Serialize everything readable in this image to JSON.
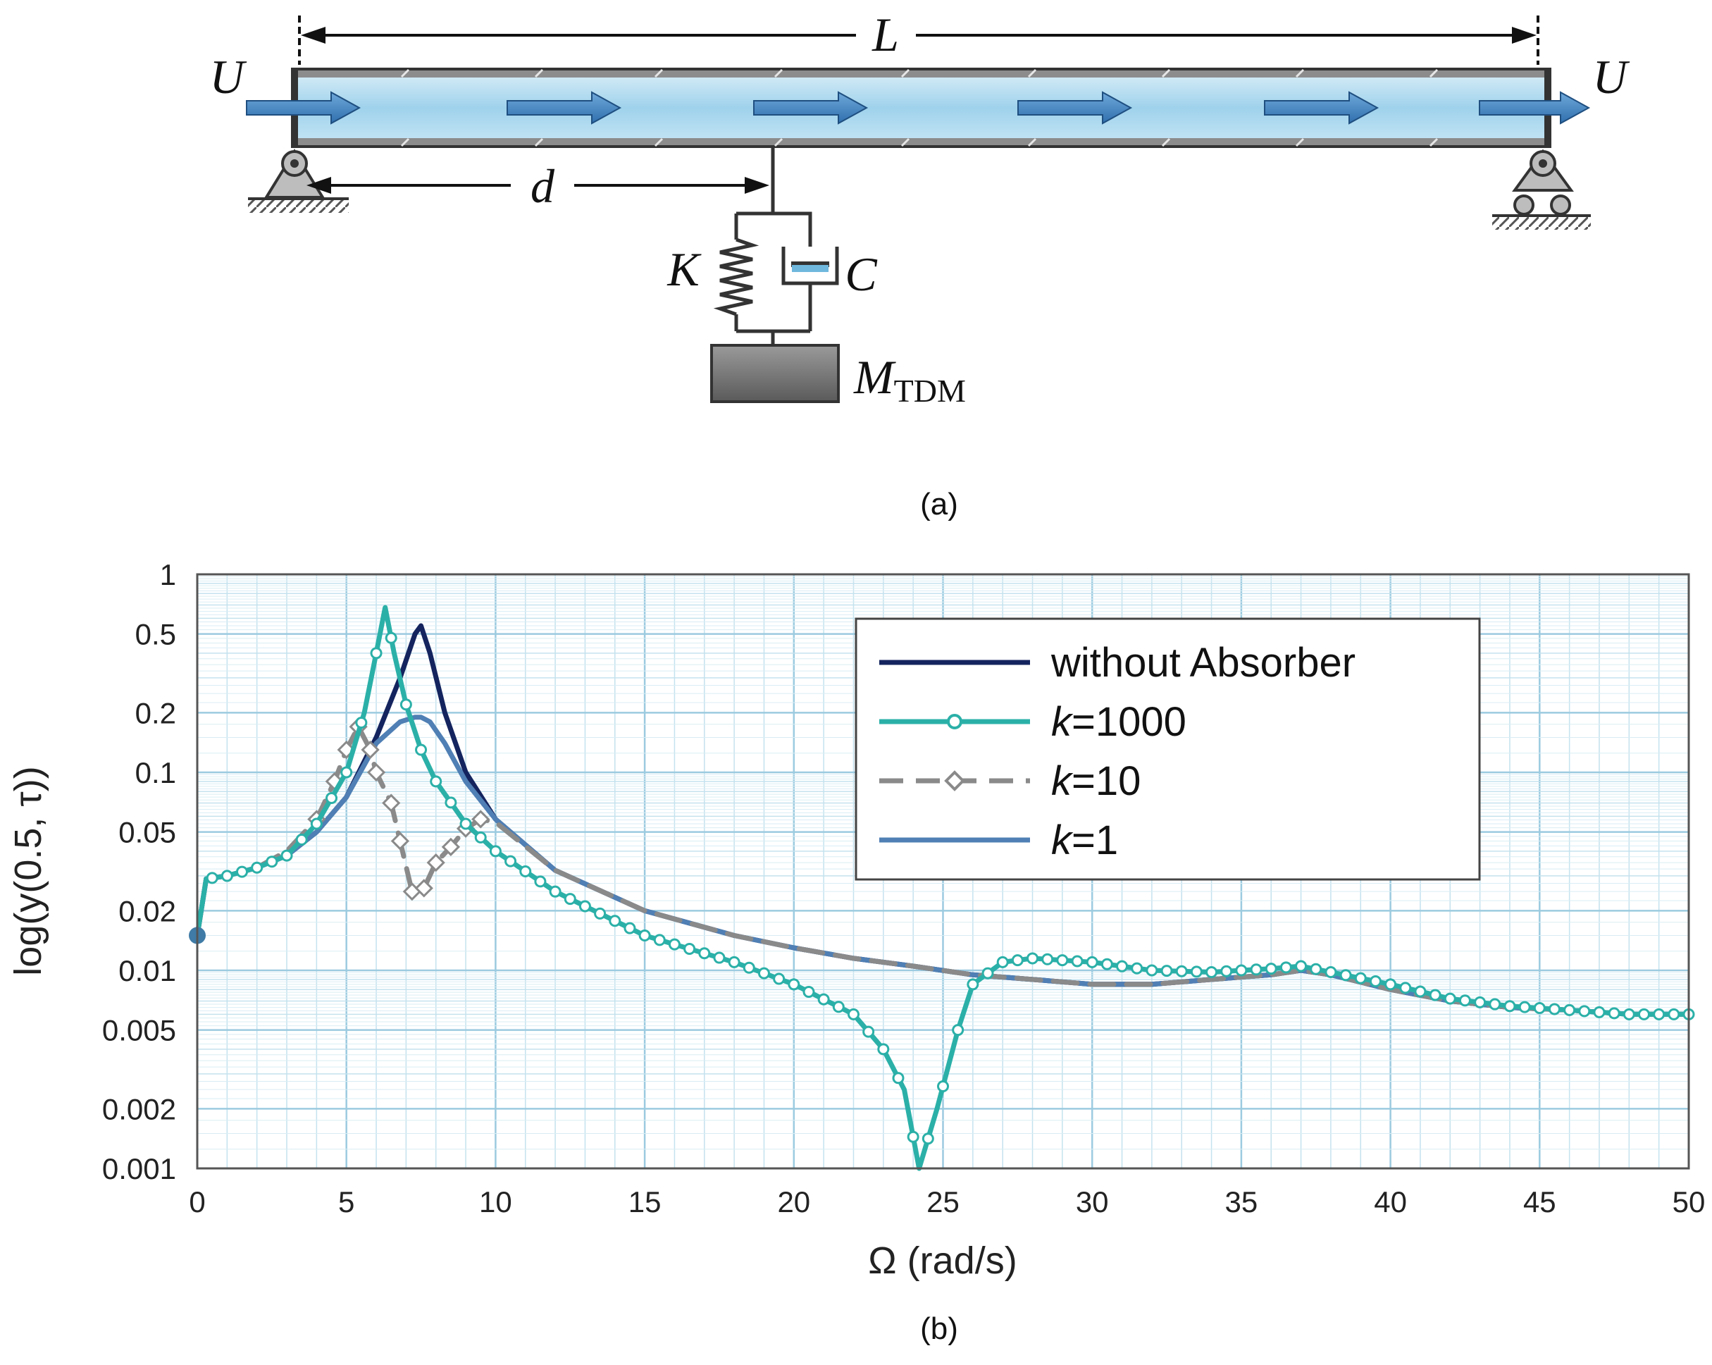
{
  "diagram": {
    "caption": "(a)",
    "length_label": "L",
    "distance_label": "d",
    "flow_label_left": "U",
    "flow_label_right": "U",
    "spring_label": "K",
    "damper_label": "C",
    "mass_label": "M",
    "mass_subscript": "TDM"
  },
  "chart_data": {
    "type": "line",
    "caption": "(b)",
    "xlabel": "Ω (rad/s)",
    "ylabel": "log(y(0.5, τ))",
    "xlim": [
      0,
      50
    ],
    "ylim": [
      0.001,
      1
    ],
    "yscale": "log",
    "grid": true,
    "legend_position": "upper-right",
    "x_ticks": [
      0,
      5,
      10,
      15,
      20,
      25,
      30,
      35,
      40,
      45,
      50
    ],
    "x_tick_labels": [
      "0",
      "5",
      "10",
      "15",
      "20",
      "25",
      "30",
      "35",
      "40",
      "45",
      "50"
    ],
    "y_ticks": [
      0.001,
      0.002,
      0.005,
      0.01,
      0.02,
      0.05,
      0.1,
      0.2,
      0.5,
      1
    ],
    "y_tick_labels": [
      "0.001",
      "0.002",
      "0.005",
      "0.01",
      "0.02",
      "0.05",
      "0.1",
      "0.2",
      "0.5",
      "1"
    ],
    "series": [
      {
        "name": "without Absorber",
        "name_prefix": "",
        "name_suffix": "without Absorber",
        "color": "#14245e",
        "style": "solid",
        "marker": "none",
        "points": [
          [
            0,
            0.015
          ],
          [
            0.3,
            0.029
          ],
          [
            1,
            0.03
          ],
          [
            2,
            0.033
          ],
          [
            3,
            0.038
          ],
          [
            4,
            0.05
          ],
          [
            5,
            0.075
          ],
          [
            6,
            0.15
          ],
          [
            6.8,
            0.3
          ],
          [
            7.3,
            0.5
          ],
          [
            7.5,
            0.55
          ],
          [
            7.8,
            0.4
          ],
          [
            8.3,
            0.2
          ],
          [
            9,
            0.1
          ],
          [
            10,
            0.058
          ],
          [
            12,
            0.032
          ],
          [
            15,
            0.02
          ],
          [
            18,
            0.015
          ],
          [
            20,
            0.013
          ],
          [
            22,
            0.0115
          ],
          [
            24,
            0.0105
          ],
          [
            26,
            0.0095
          ],
          [
            28,
            0.009
          ],
          [
            30,
            0.0085
          ],
          [
            32,
            0.0085
          ],
          [
            34,
            0.009
          ],
          [
            36,
            0.0095
          ],
          [
            37,
            0.01
          ],
          [
            38,
            0.0095
          ],
          [
            40,
            0.008
          ],
          [
            42,
            0.007
          ],
          [
            44,
            0.0065
          ],
          [
            46,
            0.0063
          ],
          [
            48,
            0.006
          ],
          [
            50,
            0.006
          ]
        ]
      },
      {
        "name": "k=1000",
        "name_prefix": "k",
        "name_suffix": "=1000",
        "color": "#2bb0a8",
        "style": "solid",
        "marker": "circle",
        "points": [
          [
            0,
            0.015
          ],
          [
            0.3,
            0.029
          ],
          [
            1,
            0.03
          ],
          [
            2,
            0.033
          ],
          [
            3,
            0.038
          ],
          [
            4,
            0.055
          ],
          [
            5,
            0.1
          ],
          [
            5.6,
            0.2
          ],
          [
            6,
            0.4
          ],
          [
            6.3,
            0.68
          ],
          [
            6.6,
            0.4
          ],
          [
            7,
            0.22
          ],
          [
            7.5,
            0.13
          ],
          [
            8,
            0.09
          ],
          [
            9,
            0.055
          ],
          [
            10,
            0.04
          ],
          [
            12,
            0.025
          ],
          [
            15,
            0.015
          ],
          [
            18,
            0.011
          ],
          [
            20,
            0.0085
          ],
          [
            22,
            0.006
          ],
          [
            23,
            0.004
          ],
          [
            23.7,
            0.0025
          ],
          [
            24.2,
            0.001
          ],
          [
            24.8,
            0.002
          ],
          [
            25.5,
            0.005
          ],
          [
            26,
            0.0085
          ],
          [
            27,
            0.011
          ],
          [
            28,
            0.0115
          ],
          [
            30,
            0.011
          ],
          [
            32,
            0.01
          ],
          [
            34,
            0.0098
          ],
          [
            36,
            0.0102
          ],
          [
            37,
            0.0105
          ],
          [
            38,
            0.0098
          ],
          [
            40,
            0.0085
          ],
          [
            42,
            0.0072
          ],
          [
            44,
            0.0066
          ],
          [
            46,
            0.0063
          ],
          [
            48,
            0.006
          ],
          [
            50,
            0.006
          ]
        ]
      },
      {
        "name": "k=10",
        "name_prefix": "k",
        "name_suffix": "=10",
        "color": "#8a8a8a",
        "style": "dashed",
        "marker": "diamond",
        "points": [
          [
            0,
            0.015
          ],
          [
            0.3,
            0.029
          ],
          [
            1,
            0.03
          ],
          [
            2,
            0.033
          ],
          [
            3,
            0.04
          ],
          [
            4,
            0.058
          ],
          [
            4.6,
            0.09
          ],
          [
            5,
            0.13
          ],
          [
            5.4,
            0.17
          ],
          [
            5.8,
            0.13
          ],
          [
            6,
            0.1
          ],
          [
            6.5,
            0.07
          ],
          [
            6.8,
            0.045
          ],
          [
            7.2,
            0.025
          ],
          [
            7.6,
            0.026
          ],
          [
            8,
            0.035
          ],
          [
            8.5,
            0.042
          ],
          [
            9,
            0.052
          ],
          [
            9.5,
            0.058
          ],
          [
            10,
            0.056
          ],
          [
            12,
            0.032
          ],
          [
            15,
            0.02
          ],
          [
            18,
            0.015
          ],
          [
            20,
            0.013
          ],
          [
            22,
            0.0115
          ],
          [
            24,
            0.0105
          ],
          [
            26,
            0.0095
          ],
          [
            28,
            0.009
          ],
          [
            30,
            0.0085
          ],
          [
            32,
            0.0085
          ],
          [
            34,
            0.009
          ],
          [
            36,
            0.0095
          ],
          [
            37,
            0.01
          ],
          [
            38,
            0.0095
          ],
          [
            40,
            0.008
          ],
          [
            42,
            0.007
          ],
          [
            44,
            0.0065
          ],
          [
            46,
            0.0063
          ],
          [
            48,
            0.006
          ],
          [
            50,
            0.006
          ]
        ]
      },
      {
        "name": "k=1",
        "name_prefix": "k",
        "name_suffix": "=1",
        "color": "#4f7fb4",
        "style": "solid",
        "marker": "none",
        "points": [
          [
            0,
            0.015
          ],
          [
            0.3,
            0.029
          ],
          [
            1,
            0.03
          ],
          [
            2,
            0.033
          ],
          [
            3,
            0.038
          ],
          [
            4,
            0.05
          ],
          [
            5,
            0.075
          ],
          [
            6,
            0.14
          ],
          [
            6.8,
            0.18
          ],
          [
            7.3,
            0.19
          ],
          [
            7.5,
            0.19
          ],
          [
            7.8,
            0.18
          ],
          [
            8.3,
            0.14
          ],
          [
            9,
            0.09
          ],
          [
            10,
            0.058
          ],
          [
            12,
            0.032
          ],
          [
            15,
            0.02
          ],
          [
            18,
            0.015
          ],
          [
            20,
            0.013
          ],
          [
            22,
            0.0115
          ],
          [
            24,
            0.0105
          ],
          [
            26,
            0.0095
          ],
          [
            28,
            0.009
          ],
          [
            30,
            0.0085
          ],
          [
            32,
            0.0085
          ],
          [
            34,
            0.009
          ],
          [
            36,
            0.0095
          ],
          [
            37,
            0.01
          ],
          [
            38,
            0.0095
          ],
          [
            40,
            0.008
          ],
          [
            42,
            0.007
          ],
          [
            44,
            0.0065
          ],
          [
            46,
            0.0063
          ],
          [
            48,
            0.006
          ],
          [
            50,
            0.006
          ]
        ]
      }
    ]
  }
}
